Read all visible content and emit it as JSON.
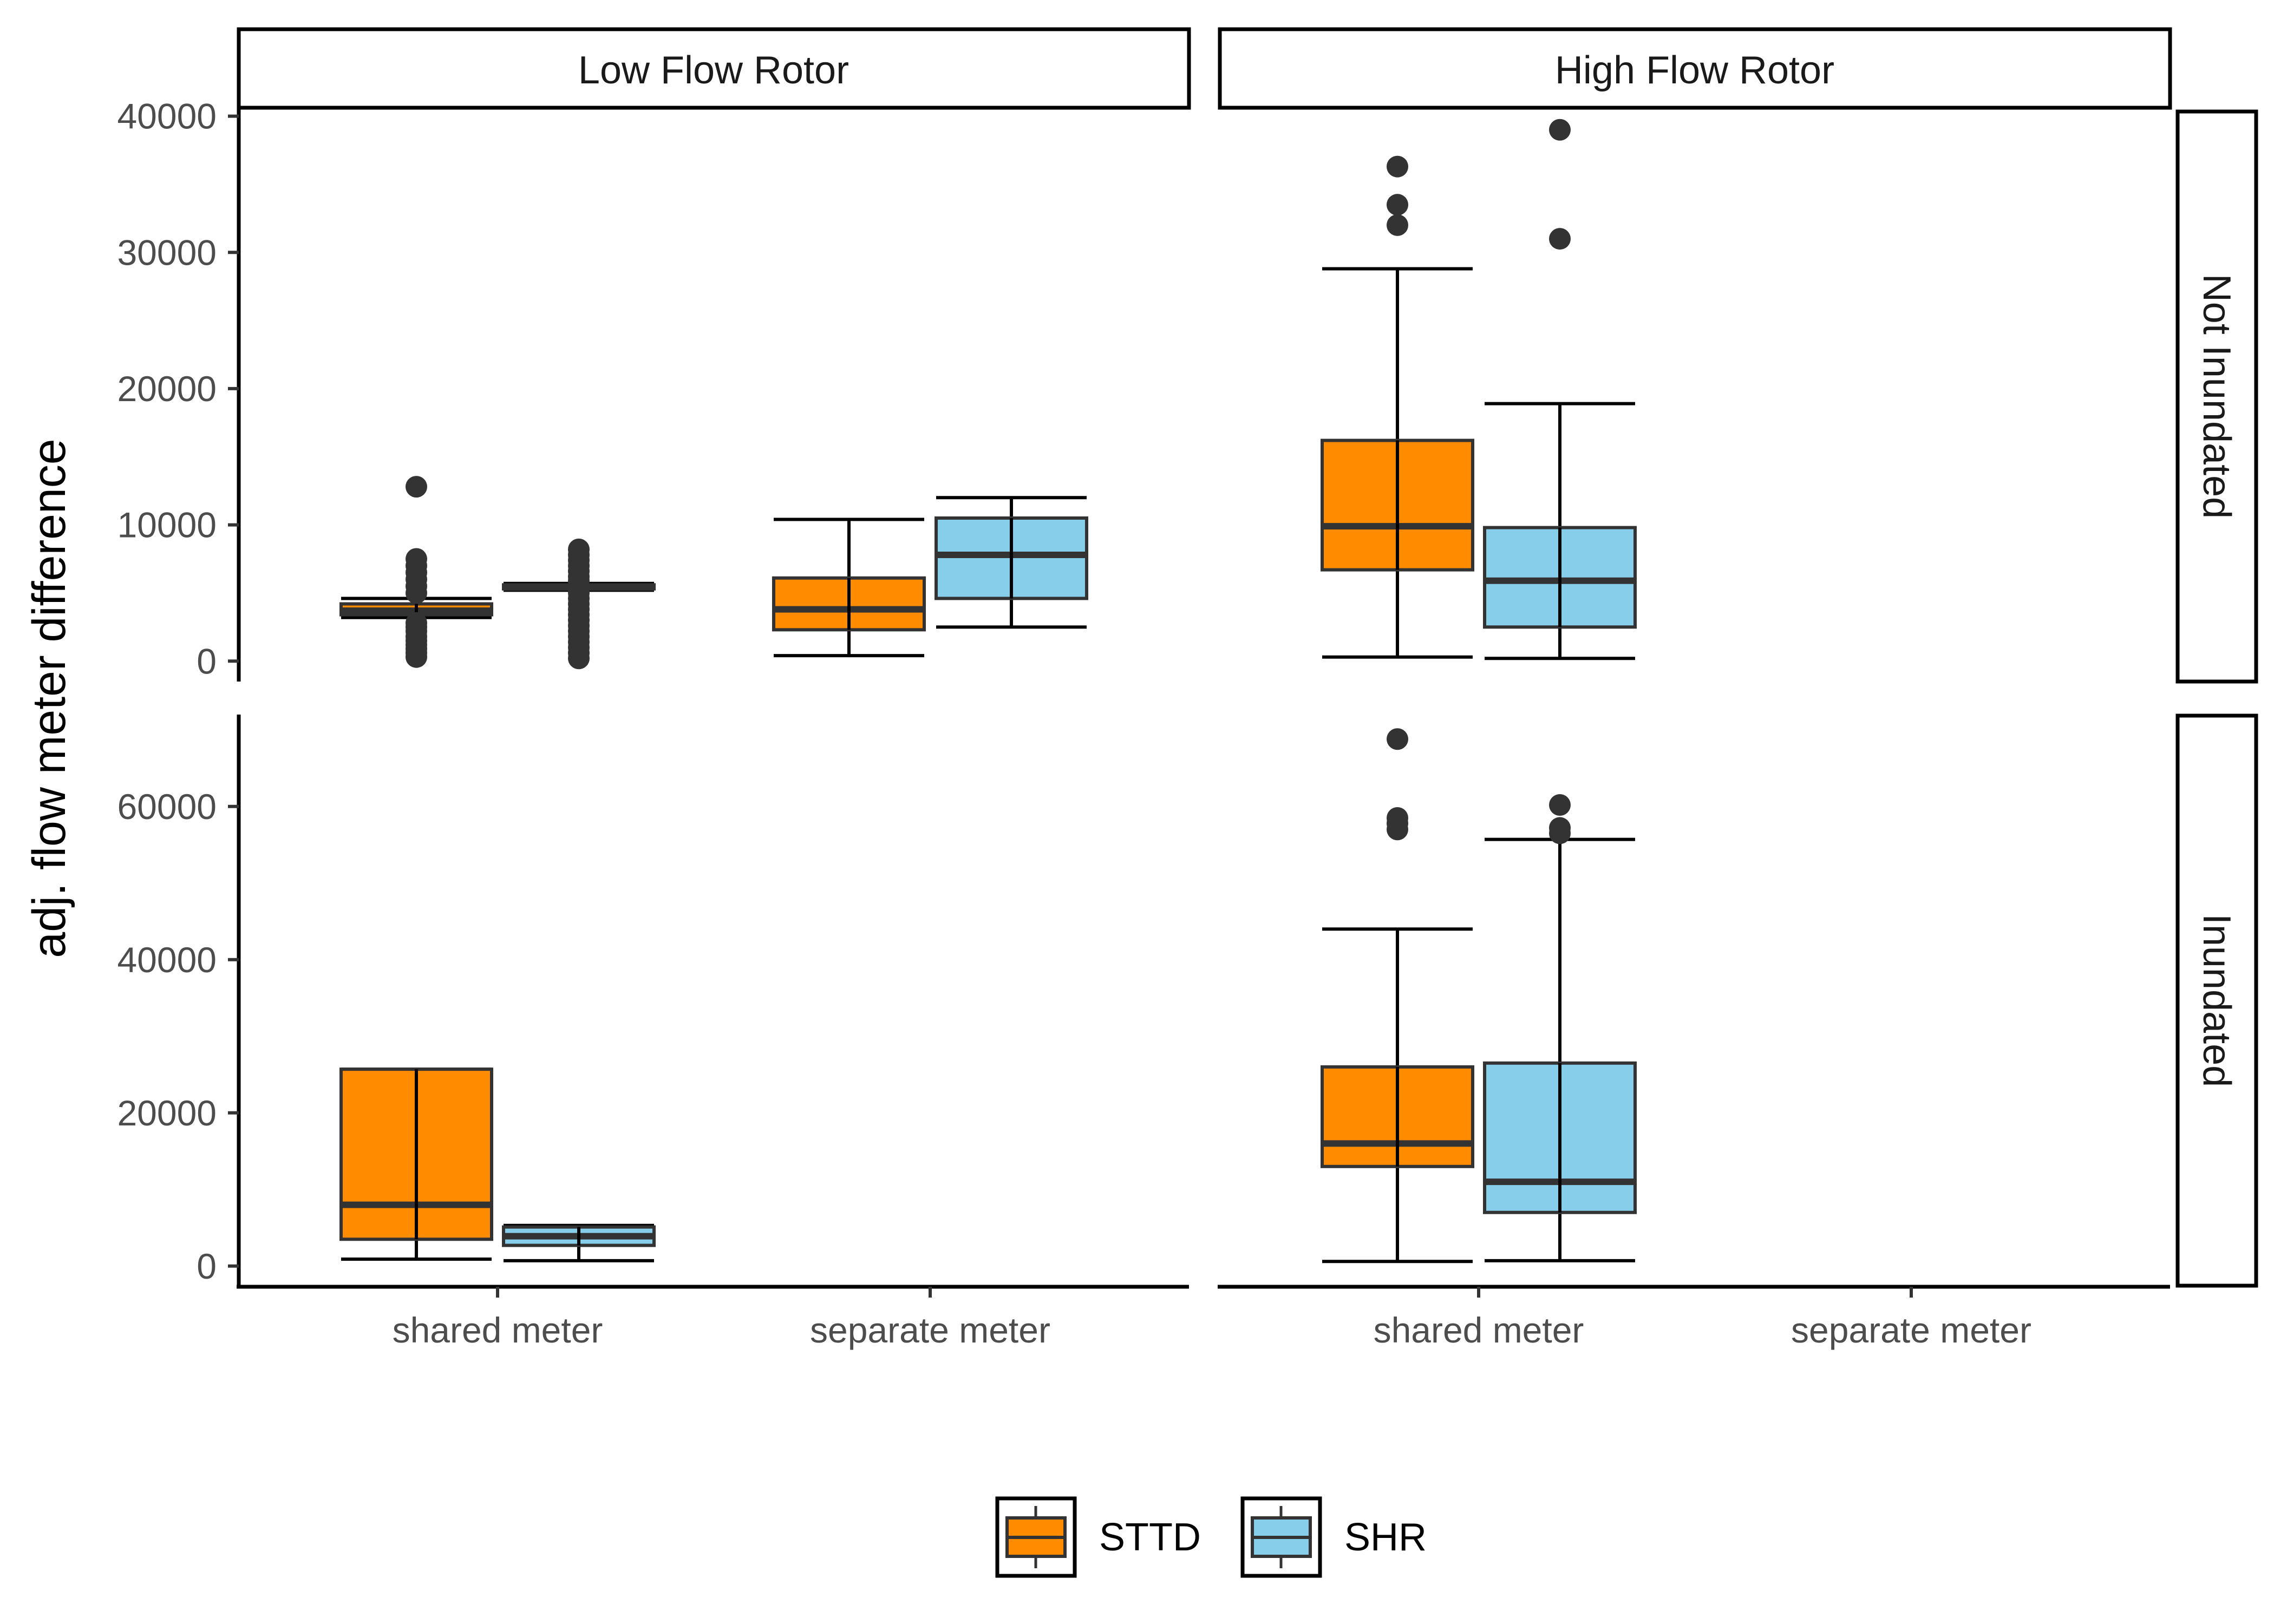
{
  "chart_data": {
    "type": "boxplot",
    "ylabel": "adj. flow meter difference",
    "xlabel": "",
    "categories": [
      "shared meter",
      "separate meter"
    ],
    "facet_cols": [
      "Low Flow Rotor",
      "High Flow Rotor"
    ],
    "facet_rows": [
      "Not Inundated",
      "Inundated"
    ],
    "series_names": [
      "STTD",
      "SHR"
    ],
    "colors": {
      "STTD": "#ff8c00",
      "SHR": "#87ceeb",
      "outline": "#333333",
      "whisker": "#000000"
    },
    "legend_position": "bottom",
    "grid": false,
    "y_axes": [
      {
        "row": "Not Inundated",
        "ylim": [
          -1500,
          40500
        ],
        "ticks": [
          0,
          10000,
          20000,
          30000,
          40000
        ],
        "tick_labels": [
          "0",
          "10000",
          "20000",
          "30000",
          "40000"
        ]
      },
      {
        "row": "Inundated",
        "ylim": [
          -2700,
          72000
        ],
        "ticks": [
          0,
          20000,
          40000,
          60000
        ],
        "tick_labels": [
          "0",
          "20000",
          "40000",
          "60000"
        ]
      }
    ],
    "boxes": [
      {
        "facet_col": "Low Flow Rotor",
        "facet_row": "Not Inundated",
        "category": "shared meter",
        "series": "STTD",
        "whisker_low": 3200,
        "q1": 3400,
        "median": 3700,
        "q3": 4200,
        "whisker_high": 4600,
        "outliers": [
          12800,
          7500,
          7000,
          6500,
          6000,
          5500,
          5000,
          2800,
          2500,
          2200,
          1800,
          1500,
          1200,
          900,
          600,
          300
        ]
      },
      {
        "facet_col": "Low Flow Rotor",
        "facet_row": "Not Inundated",
        "category": "shared meter",
        "series": "SHR",
        "whisker_low": 5200,
        "q1": 5300,
        "median": 5400,
        "q3": 5600,
        "whisker_high": 5700,
        "outliers": [
          8200,
          7800,
          7400,
          7000,
          6600,
          6200,
          5900,
          5000,
          4600,
          4200,
          3800,
          3400,
          3000,
          2600,
          2200,
          1800,
          1400,
          1000,
          600,
          200
        ]
      },
      {
        "facet_col": "Low Flow Rotor",
        "facet_row": "Not Inundated",
        "category": "separate meter",
        "series": "STTD",
        "whisker_low": 400,
        "q1": 2300,
        "median": 3800,
        "q3": 6100,
        "whisker_high": 10400,
        "outliers": []
      },
      {
        "facet_col": "Low Flow Rotor",
        "facet_row": "Not Inundated",
        "category": "separate meter",
        "series": "SHR",
        "whisker_low": 2500,
        "q1": 4600,
        "median": 7800,
        "q3": 10500,
        "whisker_high": 12000,
        "outliers": []
      },
      {
        "facet_col": "High Flow Rotor",
        "facet_row": "Not Inundated",
        "category": "shared meter",
        "series": "STTD",
        "whisker_low": 300,
        "q1": 6700,
        "median": 9900,
        "q3": 16200,
        "whisker_high": 28800,
        "outliers": [
          36300,
          33500,
          32000
        ]
      },
      {
        "facet_col": "High Flow Rotor",
        "facet_row": "Not Inundated",
        "category": "shared meter",
        "series": "SHR",
        "whisker_low": 200,
        "q1": 2500,
        "median": 5900,
        "q3": 9800,
        "whisker_high": 18900,
        "outliers": [
          39000,
          31000
        ]
      },
      {
        "facet_col": "Low Flow Rotor",
        "facet_row": "Inundated",
        "category": "shared meter",
        "series": "STTD",
        "whisker_low": 900,
        "q1": 3500,
        "median": 8000,
        "q3": 25700,
        "whisker_high": 25700,
        "outliers": []
      },
      {
        "facet_col": "Low Flow Rotor",
        "facet_row": "Inundated",
        "category": "shared meter",
        "series": "SHR",
        "whisker_low": 700,
        "q1": 2700,
        "median": 3900,
        "q3": 5100,
        "whisker_high": 5300,
        "outliers": []
      },
      {
        "facet_col": "High Flow Rotor",
        "facet_row": "Inundated",
        "category": "shared meter",
        "series": "STTD",
        "whisker_low": 600,
        "q1": 13000,
        "median": 16000,
        "q3": 26000,
        "whisker_high": 44000,
        "outliers": [
          68800,
          58500,
          57800,
          57000
        ]
      },
      {
        "facet_col": "High Flow Rotor",
        "facet_row": "Inundated",
        "category": "shared meter",
        "series": "SHR",
        "whisker_low": 700,
        "q1": 7000,
        "median": 11000,
        "q3": 26500,
        "whisker_high": 55700,
        "outliers": [
          60200,
          57200,
          56500
        ]
      }
    ]
  }
}
